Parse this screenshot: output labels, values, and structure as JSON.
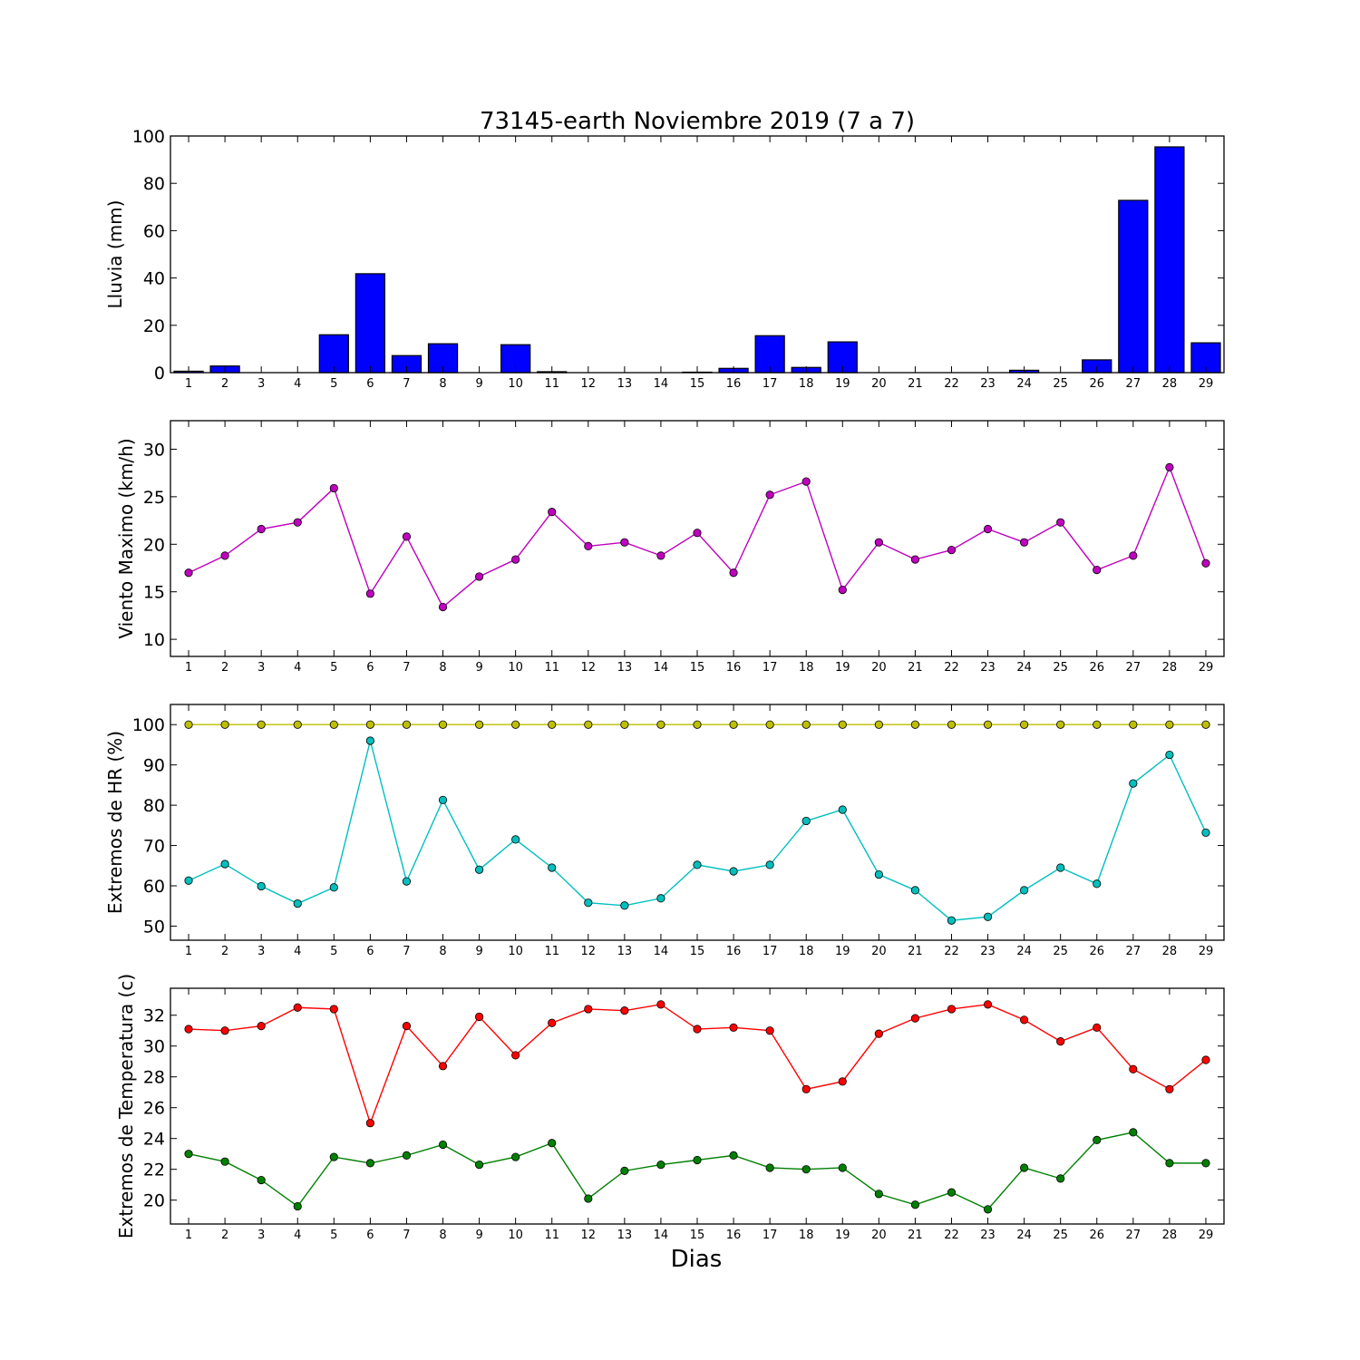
{
  "chart_data": {
    "type": "multi-panel",
    "title": "73145-earth Noviembre 2019  (7 a 7)",
    "xlabel": "Dias",
    "days": [
      1,
      2,
      3,
      4,
      5,
      6,
      7,
      8,
      9,
      10,
      11,
      12,
      13,
      14,
      15,
      16,
      17,
      18,
      19,
      20,
      21,
      22,
      23,
      24,
      25,
      26,
      27,
      28,
      29
    ],
    "panels": [
      {
        "type": "bar",
        "ylabel": "Lluvia (mm)",
        "ylim": [
          0,
          100
        ],
        "yticks": [
          0,
          20,
          40,
          60,
          80,
          100
        ],
        "series": [
          {
            "color": "#0000ff",
            "values": [
              0.6,
              2.8,
              0,
              0,
              16.0,
              41.8,
              7.2,
              12.2,
              0,
              11.8,
              0.4,
              0,
              0,
              0,
              0.2,
              1.8,
              15.6,
              2.2,
              13.0,
              0,
              0,
              0,
              0,
              1.0,
              0,
              5.4,
              72.8,
              95.4,
              12.6
            ]
          }
        ]
      },
      {
        "type": "line",
        "ylabel": "Viento Maximo (km/h)",
        "ylim": [
          8.2,
          33
        ],
        "yticks": [
          10,
          15,
          20,
          25,
          30
        ],
        "series": [
          {
            "color": "#bf00bf",
            "values": [
              17.0,
              18.8,
              21.6,
              22.3,
              25.9,
              14.8,
              20.8,
              13.4,
              16.6,
              18.4,
              23.4,
              19.8,
              20.2,
              18.8,
              21.2,
              17.0,
              25.2,
              26.6,
              15.2,
              20.2,
              18.4,
              19.4,
              21.6,
              20.2,
              22.3,
              17.3,
              18.8,
              28.1,
              18.0
            ]
          }
        ]
      },
      {
        "type": "line",
        "ylabel": "Extremos de HR (%)",
        "ylim": [
          46.5,
          105
        ],
        "yticks": [
          50,
          60,
          70,
          80,
          90,
          100
        ],
        "series": [
          {
            "color": "#bfbf00",
            "values": [
              100,
              100,
              100,
              100,
              100,
              100,
              100,
              100,
              100,
              100,
              100,
              100,
              100,
              100,
              100,
              100,
              100,
              100,
              100,
              100,
              100,
              100,
              100,
              100,
              100,
              100,
              100,
              100,
              100
            ]
          },
          {
            "color": "#00bfbf",
            "values": [
              61.3,
              65.4,
              59.9,
              55.6,
              59.6,
              96.0,
              61.1,
              81.3,
              64.0,
              71.5,
              64.5,
              55.8,
              55.1,
              56.9,
              65.2,
              63.6,
              65.2,
              76.1,
              78.9,
              62.8,
              58.9,
              51.4,
              52.3,
              58.9,
              64.5,
              60.5,
              85.4,
              92.5,
              73.2
            ]
          }
        ]
      },
      {
        "type": "line",
        "ylabel": "Extremos de Temperatura (c)",
        "ylim": [
          18.45,
          33.75
        ],
        "yticks": [
          20,
          22,
          24,
          26,
          28,
          30,
          32
        ],
        "series": [
          {
            "color": "#ff0000",
            "values": [
              31.1,
              31.0,
              31.3,
              32.5,
              32.4,
              25.0,
              31.3,
              28.7,
              31.9,
              29.4,
              31.5,
              32.4,
              32.3,
              32.7,
              31.1,
              31.2,
              31.0,
              27.2,
              27.7,
              30.8,
              31.8,
              32.4,
              32.7,
              31.7,
              30.3,
              31.2,
              28.5,
              27.2,
              29.1
            ]
          },
          {
            "color": "#008000",
            "values": [
              23.0,
              22.5,
              21.3,
              19.6,
              22.8,
              22.4,
              22.9,
              23.6,
              22.3,
              22.8,
              23.7,
              20.1,
              21.9,
              22.3,
              22.6,
              22.9,
              22.1,
              22.0,
              22.1,
              20.4,
              19.7,
              20.5,
              19.4,
              22.1,
              21.4,
              23.9,
              24.4,
              22.4,
              22.4
            ]
          }
        ]
      }
    ]
  }
}
